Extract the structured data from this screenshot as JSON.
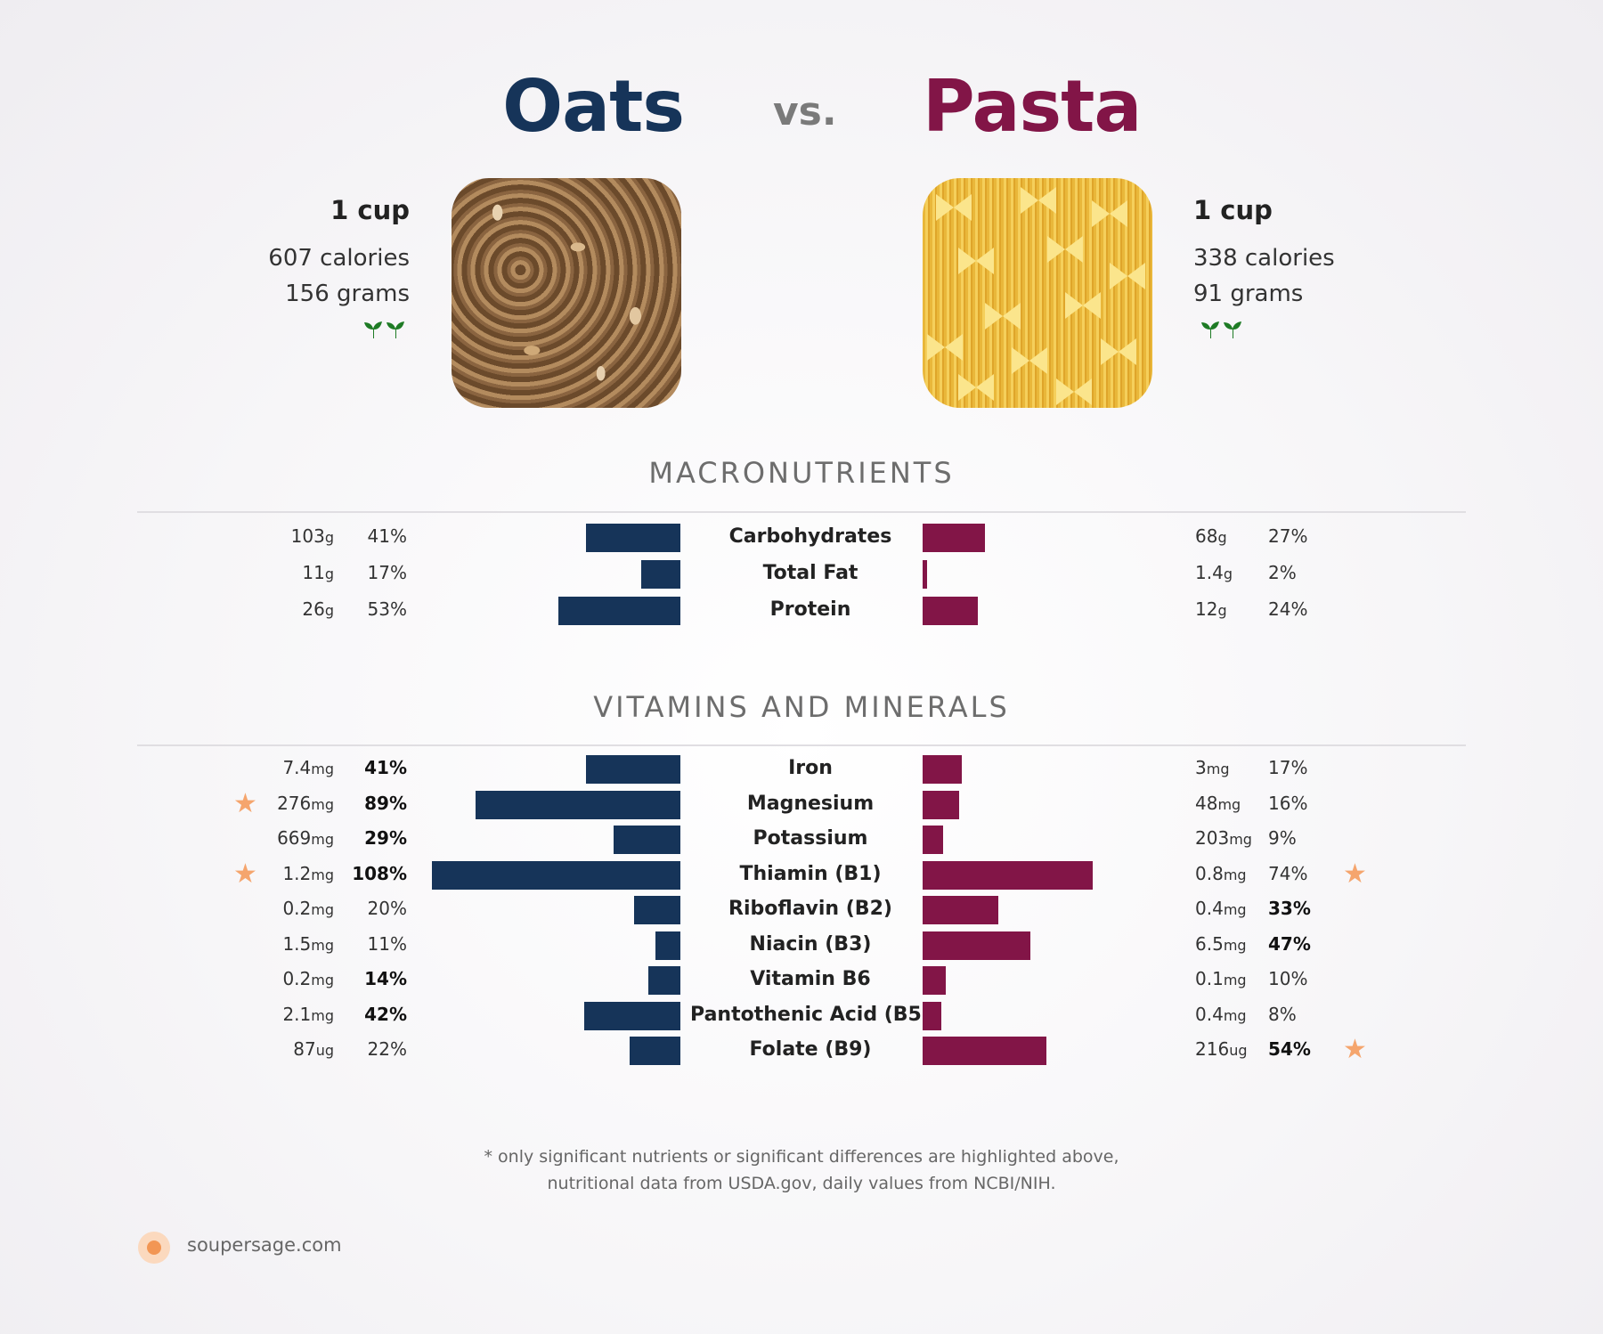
{
  "colors": {
    "left": "#163459",
    "right": "#821547",
    "star": "#f5a56d",
    "sprout": "#1e7b25"
  },
  "header": {
    "left_food": "Oats",
    "vs": "vs.",
    "right_food": "Pasta"
  },
  "left_food": {
    "serving": "1 cup",
    "calories": "607 calories",
    "grams": "156 grams",
    "sprouts_icon": "sprout-icon"
  },
  "right_food": {
    "serving": "1 cup",
    "calories": "338 calories",
    "grams": "91 grams",
    "sprouts_icon": "sprout-icon"
  },
  "sections": {
    "macros": "MACRONUTRIENTS",
    "vitamins": "VITAMINS AND MINERALS"
  },
  "chart_data": [
    {
      "type": "bar",
      "title": "MACRONUTRIENTS",
      "categories": [
        "Carbohydrates",
        "Total Fat",
        "Protein"
      ],
      "series": [
        {
          "name": "Oats",
          "amounts": [
            "103",
            "11",
            "26"
          ],
          "units": [
            "g",
            "g",
            "g"
          ],
          "values": [
            41,
            17,
            53
          ],
          "bold": [
            false,
            false,
            false
          ],
          "star": [
            false,
            false,
            false
          ]
        },
        {
          "name": "Pasta",
          "amounts": [
            "68",
            "1.4",
            "12"
          ],
          "units": [
            "g",
            "g",
            "g"
          ],
          "values": [
            27,
            2,
            24
          ],
          "bold": [
            false,
            false,
            false
          ],
          "star": [
            false,
            false,
            false
          ]
        }
      ]
    },
    {
      "type": "bar",
      "title": "VITAMINS AND MINERALS",
      "categories": [
        "Iron",
        "Magnesium",
        "Potassium",
        "Thiamin (B1)",
        "Riboflavin (B2)",
        "Niacin (B3)",
        "Vitamin B6",
        "Pantothenic Acid (B5)",
        "Folate (B9)"
      ],
      "series": [
        {
          "name": "Oats",
          "amounts": [
            "7.4",
            "276",
            "669",
            "1.2",
            "0.2",
            "1.5",
            "0.2",
            "2.1",
            "87"
          ],
          "units": [
            "mg",
            "mg",
            "mg",
            "mg",
            "mg",
            "mg",
            "mg",
            "mg",
            "ug"
          ],
          "values": [
            41,
            89,
            29,
            108,
            20,
            11,
            14,
            42,
            22
          ],
          "bold": [
            true,
            true,
            true,
            true,
            false,
            false,
            true,
            true,
            false
          ],
          "star": [
            false,
            true,
            false,
            true,
            false,
            false,
            false,
            false,
            false
          ]
        },
        {
          "name": "Pasta",
          "amounts": [
            "3",
            "48",
            "203",
            "0.8",
            "0.4",
            "6.5",
            "0.1",
            "0.4",
            "216"
          ],
          "units": [
            "mg",
            "mg",
            "mg",
            "mg",
            "mg",
            "mg",
            "mg",
            "mg",
            "ug"
          ],
          "values": [
            17,
            16,
            9,
            74,
            33,
            47,
            10,
            8,
            54
          ],
          "bold": [
            false,
            false,
            false,
            false,
            true,
            true,
            false,
            false,
            true
          ],
          "star": [
            false,
            false,
            false,
            true,
            false,
            false,
            false,
            false,
            true
          ]
        }
      ]
    }
  ],
  "footnote": {
    "line1": "* only significant nutrients or significant differences are highlighted above,",
    "line2": "nutritional data from USDA.gov, daily values from NCBI/NIH."
  },
  "brand": {
    "name": "soupersage.com",
    "icon": "soupersage-logo-icon"
  }
}
